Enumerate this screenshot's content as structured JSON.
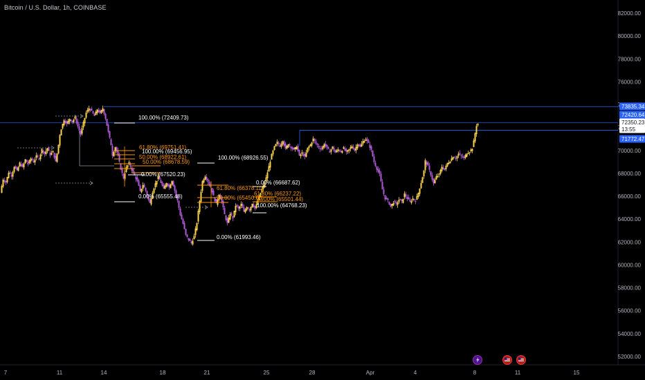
{
  "window": {
    "title": "Bitcoin / U.S. Dollar, 1h, COINBASE"
  },
  "chart_data": {
    "type": "candlestick",
    "symbol": "Bitcoin / U.S. Dollar",
    "interval": "1h",
    "exchange": "COINBASE",
    "ylim": [
      51500,
      83000
    ],
    "y_ticks": [
      "82000.00",
      "80000.00",
      "78000.00",
      "76000.00",
      "74000.00",
      "72000.00",
      "70000.00",
      "68000.00",
      "66000.00",
      "64000.00",
      "62000.00",
      "60000.00",
      "58000.00",
      "56000.00",
      "54000.00",
      "52000.00"
    ],
    "x_ticks": [
      "7",
      "11",
      "14",
      "18",
      "21",
      "25",
      "28",
      "Apr",
      "4",
      "8",
      "11",
      "15"
    ],
    "price_tags": [
      {
        "label": "73835.34",
        "value": 73835.34,
        "style": "blue"
      },
      {
        "label": "72420.64",
        "value": 72420.64,
        "style": "blue"
      },
      {
        "label": "72350.23",
        "value": 72350.23,
        "style": "white"
      },
      {
        "label": "13:55",
        "value": null,
        "style": "white"
      },
      {
        "label": "71772.47",
        "value": 71772.47,
        "style": "blue"
      }
    ],
    "horizontal_lines": [
      73835.34,
      72420.64,
      71772.47
    ],
    "fib_labels": [
      {
        "text": "100.00% (72409.73)",
        "color": "#ffffff"
      },
      {
        "text": "61.80% (69751.41)",
        "color": "#ff9800"
      },
      {
        "text": "100.00% (69456.95)",
        "color": "#ffffff"
      },
      {
        "text": "50.00% (68922.61)",
        "color": "#ff9800"
      },
      {
        "text": "50.00% (68678.59)",
        "color": "#ff9800"
      },
      {
        "text": "0.00% (67520.23)",
        "color": "#ffffff"
      },
      {
        "text": "0.00% (65555.48)",
        "color": "#ffffff"
      },
      {
        "text": "100.00% (68926.55)",
        "color": "#ffffff"
      },
      {
        "text": "0.00% (66687.62)",
        "color": "#ffffff"
      },
      {
        "text": "61.80% (66378.11)",
        "color": "#ff9800"
      },
      {
        "text": "61.80% (66237.22)",
        "color": "#ff9800"
      },
      {
        "text": "50.00% (65450.00)",
        "color": "#ff9800"
      },
      {
        "text": "50.00% (65501.44)",
        "color": "#ff9800"
      },
      {
        "text": "100.00% (64768.23)",
        "color": "#ffffff"
      },
      {
        "text": "0.00% (61993.46)",
        "color": "#ffffff"
      }
    ],
    "path": [
      [
        0,
        66300
      ],
      [
        4,
        67500
      ],
      [
        8,
        67200
      ],
      [
        12,
        68100
      ],
      [
        16,
        67800
      ],
      [
        20,
        68600
      ],
      [
        24,
        68200
      ],
      [
        28,
        68900
      ],
      [
        32,
        68500
      ],
      [
        36,
        69200
      ],
      [
        40,
        68800
      ],
      [
        44,
        69300
      ],
      [
        48,
        69000
      ],
      [
        52,
        69500
      ],
      [
        56,
        69300
      ],
      [
        60,
        70100
      ],
      [
        64,
        69700
      ],
      [
        68,
        70200
      ],
      [
        72,
        69600
      ],
      [
        76,
        69900
      ],
      [
        80,
        69000
      ],
      [
        84,
        70500
      ],
      [
        86,
        71400
      ],
      [
        88,
        71900
      ],
      [
        92,
        72700
      ],
      [
        96,
        72300
      ],
      [
        100,
        72800
      ],
      [
        104,
        72500
      ],
      [
        108,
        72900
      ],
      [
        112,
        72100
      ],
      [
        116,
        71400
      ],
      [
        120,
        72400
      ],
      [
        124,
        73300
      ],
      [
        128,
        73700
      ],
      [
        132,
        73400
      ],
      [
        136,
        73000
      ],
      [
        140,
        73600
      ],
      [
        144,
        73200
      ],
      [
        148,
        73700
      ],
      [
        152,
        72800
      ],
      [
        156,
        71600
      ],
      [
        160,
        70500
      ],
      [
        162,
        69600
      ],
      [
        166,
        70300
      ],
      [
        170,
        69500
      ],
      [
        174,
        68400
      ],
      [
        178,
        67600
      ],
      [
        182,
        68500
      ],
      [
        186,
        68900
      ],
      [
        190,
        68300
      ],
      [
        194,
        67800
      ],
      [
        198,
        67300
      ],
      [
        202,
        66400
      ],
      [
        206,
        67000
      ],
      [
        210,
        66500
      ],
      [
        214,
        65700
      ],
      [
        216,
        65400
      ],
      [
        220,
        66400
      ],
      [
        224,
        67100
      ],
      [
        228,
        67700
      ],
      [
        232,
        67200
      ],
      [
        236,
        66600
      ],
      [
        240,
        67200
      ],
      [
        244,
        66800
      ],
      [
        248,
        67400
      ],
      [
        252,
        66500
      ],
      [
        256,
        65600
      ],
      [
        260,
        64400
      ],
      [
        264,
        63600
      ],
      [
        268,
        62600
      ],
      [
        272,
        62200
      ],
      [
        276,
        61900
      ],
      [
        280,
        62500
      ],
      [
        284,
        63700
      ],
      [
        288,
        65600
      ],
      [
        292,
        67300
      ],
      [
        296,
        67800
      ],
      [
        300,
        67300
      ],
      [
        304,
        66800
      ],
      [
        308,
        66000
      ],
      [
        312,
        65300
      ],
      [
        316,
        66200
      ],
      [
        320,
        65500
      ],
      [
        324,
        64400
      ],
      [
        328,
        63600
      ],
      [
        332,
        64500
      ],
      [
        336,
        64100
      ],
      [
        340,
        65200
      ],
      [
        344,
        64900
      ],
      [
        348,
        65300
      ],
      [
        352,
        64600
      ],
      [
        356,
        65100
      ],
      [
        360,
        64800
      ],
      [
        364,
        65400
      ],
      [
        368,
        64900
      ],
      [
        372,
        65600
      ],
      [
        376,
        66300
      ],
      [
        380,
        66900
      ],
      [
        384,
        67600
      ],
      [
        388,
        68600
      ],
      [
        392,
        69600
      ],
      [
        396,
        70300
      ],
      [
        400,
        70700
      ],
      [
        404,
        70400
      ],
      [
        408,
        70900
      ],
      [
        412,
        70100
      ],
      [
        416,
        70600
      ],
      [
        420,
        70300
      ],
      [
        424,
        70000
      ],
      [
        428,
        70400
      ],
      [
        432,
        69500
      ],
      [
        436,
        69800
      ],
      [
        440,
        69400
      ],
      [
        444,
        70200
      ],
      [
        448,
        70500
      ],
      [
        452,
        71000
      ],
      [
        456,
        70600
      ],
      [
        460,
        70300
      ],
      [
        464,
        70100
      ],
      [
        468,
        70600
      ],
      [
        472,
        70200
      ],
      [
        476,
        69900
      ],
      [
        480,
        70300
      ],
      [
        484,
        69800
      ],
      [
        488,
        70100
      ],
      [
        492,
        69900
      ],
      [
        496,
        70200
      ],
      [
        500,
        69800
      ],
      [
        504,
        70100
      ],
      [
        508,
        70400
      ],
      [
        512,
        70000
      ],
      [
        516,
        70600
      ],
      [
        520,
        70300
      ],
      [
        524,
        70800
      ],
      [
        528,
        71000
      ],
      [
        532,
        70600
      ],
      [
        536,
        70000
      ],
      [
        540,
        69000
      ],
      [
        544,
        68400
      ],
      [
        548,
        67900
      ],
      [
        552,
        66600
      ],
      [
        556,
        65800
      ],
      [
        560,
        65600
      ],
      [
        564,
        65100
      ],
      [
        568,
        65500
      ],
      [
        572,
        65300
      ],
      [
        576,
        65700
      ],
      [
        580,
        65500
      ],
      [
        584,
        66200
      ],
      [
        588,
        65800
      ],
      [
        592,
        65500
      ],
      [
        596,
        65800
      ],
      [
        600,
        65600
      ],
      [
        604,
        66300
      ],
      [
        608,
        67200
      ],
      [
        612,
        68200
      ],
      [
        614,
        69100
      ],
      [
        618,
        68600
      ],
      [
        622,
        67900
      ],
      [
        626,
        67100
      ],
      [
        630,
        67700
      ],
      [
        634,
        67900
      ],
      [
        638,
        68600
      ],
      [
        642,
        68300
      ],
      [
        646,
        68900
      ],
      [
        650,
        69100
      ],
      [
        654,
        69500
      ],
      [
        658,
        69300
      ],
      [
        662,
        69700
      ],
      [
        666,
        69500
      ],
      [
        670,
        69300
      ],
      [
        674,
        69800
      ],
      [
        678,
        69900
      ],
      [
        682,
        70200
      ],
      [
        684,
        70800
      ],
      [
        686,
        71500
      ],
      [
        688,
        72200
      ],
      [
        690,
        72350
      ]
    ]
  },
  "toolbar_icons": [
    {
      "name": "lightning-icon",
      "color": "#9c27b0"
    },
    {
      "name": "us-flag-icon-1",
      "color": "#e53935"
    },
    {
      "name": "us-flag-icon-2",
      "color": "#e53935"
    }
  ]
}
